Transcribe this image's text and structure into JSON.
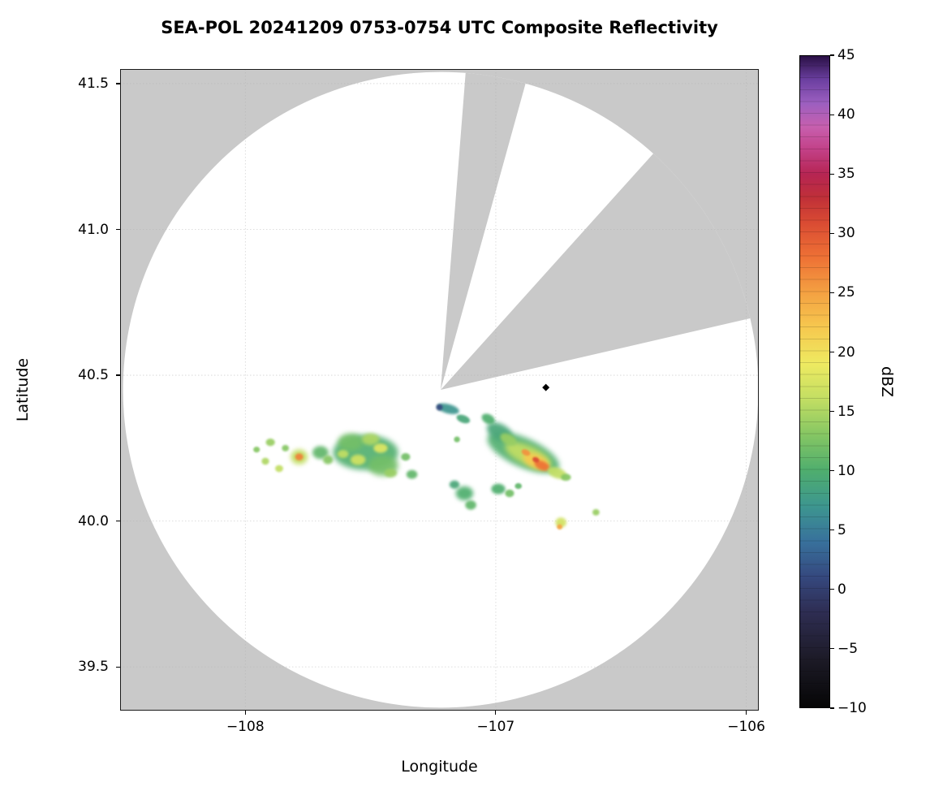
{
  "chart_data": {
    "type": "heatmap",
    "title": "SEA-POL 20241209 0753-0754 UTC Composite Reflectivity",
    "xlabel": "Longitude",
    "ylabel": "Latitude",
    "xlim": [
      -108.5,
      -105.95
    ],
    "ylim": [
      39.35,
      41.55
    ],
    "grid": true,
    "x_ticks": [
      {
        "value": -108,
        "label": "−108"
      },
      {
        "value": -107,
        "label": "−107"
      },
      {
        "value": -106,
        "label": "−106"
      }
    ],
    "y_ticks": [
      {
        "value": 41.5,
        "label": "41.5"
      },
      {
        "value": 41.0,
        "label": "41.0"
      },
      {
        "value": 40.5,
        "label": "40.5"
      },
      {
        "value": 40.0,
        "label": "40.0"
      },
      {
        "value": 39.5,
        "label": "39.5"
      }
    ],
    "colorbar": {
      "label": "dBZ",
      "min": -10,
      "max": 45,
      "ticks": [
        {
          "value": 45,
          "label": "45"
        },
        {
          "value": 40,
          "label": "40"
        },
        {
          "value": 35,
          "label": "35"
        },
        {
          "value": 30,
          "label": "30"
        },
        {
          "value": 25,
          "label": "25"
        },
        {
          "value": 20,
          "label": "20"
        },
        {
          "value": 15,
          "label": "15"
        },
        {
          "value": 10,
          "label": "10"
        },
        {
          "value": 5,
          "label": "5"
        },
        {
          "value": 0,
          "label": "0"
        },
        {
          "value": -5,
          "label": "−5"
        },
        {
          "value": -10,
          "label": "−10"
        }
      ],
      "stops": [
        {
          "v": -10,
          "c": "#060606"
        },
        {
          "v": -6,
          "c": "#1c1a26"
        },
        {
          "v": -2,
          "c": "#2e2d52"
        },
        {
          "v": 1,
          "c": "#35487e"
        },
        {
          "v": 4,
          "c": "#38719c"
        },
        {
          "v": 7,
          "c": "#3d968f"
        },
        {
          "v": 10,
          "c": "#4fae6e"
        },
        {
          "v": 13,
          "c": "#85c663"
        },
        {
          "v": 16,
          "c": "#c2de63"
        },
        {
          "v": 19,
          "c": "#eeea61"
        },
        {
          "v": 22,
          "c": "#f6c94f"
        },
        {
          "v": 25,
          "c": "#f4a142"
        },
        {
          "v": 28,
          "c": "#ee7135"
        },
        {
          "v": 31,
          "c": "#d94a33"
        },
        {
          "v": 33,
          "c": "#c03038"
        },
        {
          "v": 35,
          "c": "#b62553"
        },
        {
          "v": 37,
          "c": "#c23f85"
        },
        {
          "v": 39,
          "c": "#c75fae"
        },
        {
          "v": 41,
          "c": "#9c5fc0"
        },
        {
          "v": 43,
          "c": "#6b3fa0"
        },
        {
          "v": 45,
          "c": "#2a1045"
        }
      ]
    },
    "radar": {
      "center_lon": -107.22,
      "center_lat": 40.45,
      "radius_deg_lat": 1.09,
      "blocked_sectors_az": [
        [
          4.5,
          15.5
        ],
        [
          42,
          77
        ]
      ],
      "outside_color": "#c9c9c9",
      "inside_color": "#ffffff"
    },
    "marker": {
      "lon": -106.8,
      "lat": 40.458,
      "shape": "diamond",
      "color": "#000000"
    },
    "echoes": [
      {
        "lon": -107.955,
        "lat": 40.245,
        "rx": 0.013,
        "ry": 0.01,
        "dbz": 13
      },
      {
        "lon": -107.92,
        "lat": 40.205,
        "rx": 0.015,
        "ry": 0.012,
        "dbz": 15
      },
      {
        "lon": -107.9,
        "lat": 40.27,
        "rx": 0.018,
        "ry": 0.013,
        "dbz": 14
      },
      {
        "lon": -107.865,
        "lat": 40.18,
        "rx": 0.016,
        "ry": 0.012,
        "dbz": 16
      },
      {
        "lon": -107.84,
        "lat": 40.25,
        "rx": 0.014,
        "ry": 0.011,
        "dbz": 13
      },
      {
        "lon": -107.785,
        "lat": 40.22,
        "rx": 0.034,
        "ry": 0.026,
        "dbz": 16
      },
      {
        "lon": -107.785,
        "lat": 40.22,
        "rx": 0.016,
        "ry": 0.012,
        "dbz": 27
      },
      {
        "lon": -107.7,
        "lat": 40.235,
        "rx": 0.032,
        "ry": 0.022,
        "dbz": 11
      },
      {
        "lon": -107.67,
        "lat": 40.21,
        "rx": 0.02,
        "ry": 0.015,
        "dbz": 13
      },
      {
        "lon": -107.52,
        "lat": 40.235,
        "rx": 0.13,
        "ry": 0.06,
        "dbz": 10,
        "op": 0.9
      },
      {
        "lon": -107.58,
        "lat": 40.27,
        "rx": 0.05,
        "ry": 0.03,
        "dbz": 12
      },
      {
        "lon": -107.45,
        "lat": 40.19,
        "rx": 0.06,
        "ry": 0.035,
        "dbz": 12
      },
      {
        "lon": -107.5,
        "lat": 40.28,
        "rx": 0.035,
        "ry": 0.02,
        "dbz": 15
      },
      {
        "lon": -107.55,
        "lat": 40.21,
        "rx": 0.03,
        "ry": 0.018,
        "dbz": 17
      },
      {
        "lon": -107.46,
        "lat": 40.25,
        "rx": 0.028,
        "ry": 0.016,
        "dbz": 18
      },
      {
        "lon": -107.42,
        "lat": 40.165,
        "rx": 0.025,
        "ry": 0.015,
        "dbz": 14
      },
      {
        "lon": -107.61,
        "lat": 40.23,
        "rx": 0.022,
        "ry": 0.014,
        "dbz": 16
      },
      {
        "lon": -107.36,
        "lat": 40.22,
        "rx": 0.018,
        "ry": 0.013,
        "dbz": 12
      },
      {
        "lon": -107.335,
        "lat": 40.16,
        "rx": 0.022,
        "ry": 0.015,
        "dbz": 11
      },
      {
        "lon": -107.165,
        "lat": 40.125,
        "rx": 0.02,
        "ry": 0.014,
        "dbz": 9
      },
      {
        "lon": -107.125,
        "lat": 40.095,
        "rx": 0.035,
        "ry": 0.024,
        "dbz": 10
      },
      {
        "lon": -107.1,
        "lat": 40.055,
        "rx": 0.022,
        "ry": 0.016,
        "dbz": 11
      },
      {
        "lon": -107.155,
        "lat": 40.28,
        "rx": 0.012,
        "ry": 0.01,
        "dbz": 12
      },
      {
        "lon": -107.19,
        "lat": 40.385,
        "rx": 0.045,
        "ry": 0.016,
        "dbz": 7,
        "rot": 15
      },
      {
        "lon": -107.225,
        "lat": 40.39,
        "rx": 0.013,
        "ry": 0.011,
        "dbz": 1
      },
      {
        "lon": -107.13,
        "lat": 40.35,
        "rx": 0.028,
        "ry": 0.013,
        "dbz": 9,
        "rot": 20
      },
      {
        "lon": -106.89,
        "lat": 40.235,
        "rx": 0.155,
        "ry": 0.05,
        "dbz": 10,
        "rot": 24,
        "op": 0.9
      },
      {
        "lon": -106.985,
        "lat": 40.305,
        "rx": 0.055,
        "ry": 0.028,
        "dbz": 9,
        "rot": 28
      },
      {
        "lon": -107.03,
        "lat": 40.35,
        "rx": 0.028,
        "ry": 0.016,
        "dbz": 10,
        "rot": 28
      },
      {
        "lon": -106.87,
        "lat": 40.225,
        "rx": 0.1,
        "ry": 0.033,
        "dbz": 16,
        "rot": 24
      },
      {
        "lon": -106.95,
        "lat": 40.28,
        "rx": 0.035,
        "ry": 0.018,
        "dbz": 14,
        "rot": 28
      },
      {
        "lon": -106.84,
        "lat": 40.205,
        "rx": 0.055,
        "ry": 0.024,
        "dbz": 22,
        "rot": 24
      },
      {
        "lon": -106.815,
        "lat": 40.19,
        "rx": 0.032,
        "ry": 0.015,
        "dbz": 28,
        "rot": 24
      },
      {
        "lon": -106.84,
        "lat": 40.21,
        "rx": 0.014,
        "ry": 0.009,
        "dbz": 31,
        "rot": 24
      },
      {
        "lon": -106.88,
        "lat": 40.235,
        "rx": 0.018,
        "ry": 0.01,
        "dbz": 26,
        "rot": 24
      },
      {
        "lon": -106.755,
        "lat": 40.165,
        "rx": 0.04,
        "ry": 0.018,
        "dbz": 16,
        "rot": 20
      },
      {
        "lon": -106.72,
        "lat": 40.15,
        "rx": 0.02,
        "ry": 0.012,
        "dbz": 13
      },
      {
        "lon": -106.99,
        "lat": 40.11,
        "rx": 0.028,
        "ry": 0.018,
        "dbz": 10
      },
      {
        "lon": -106.945,
        "lat": 40.095,
        "rx": 0.018,
        "ry": 0.013,
        "dbz": 12
      },
      {
        "lon": -106.91,
        "lat": 40.12,
        "rx": 0.014,
        "ry": 0.01,
        "dbz": 11
      },
      {
        "lon": -106.74,
        "lat": 39.995,
        "rx": 0.022,
        "ry": 0.017,
        "dbz": 17
      },
      {
        "lon": -106.745,
        "lat": 39.98,
        "rx": 0.011,
        "ry": 0.009,
        "dbz": 25
      },
      {
        "lon": -106.6,
        "lat": 40.03,
        "rx": 0.014,
        "ry": 0.011,
        "dbz": 14
      }
    ]
  }
}
